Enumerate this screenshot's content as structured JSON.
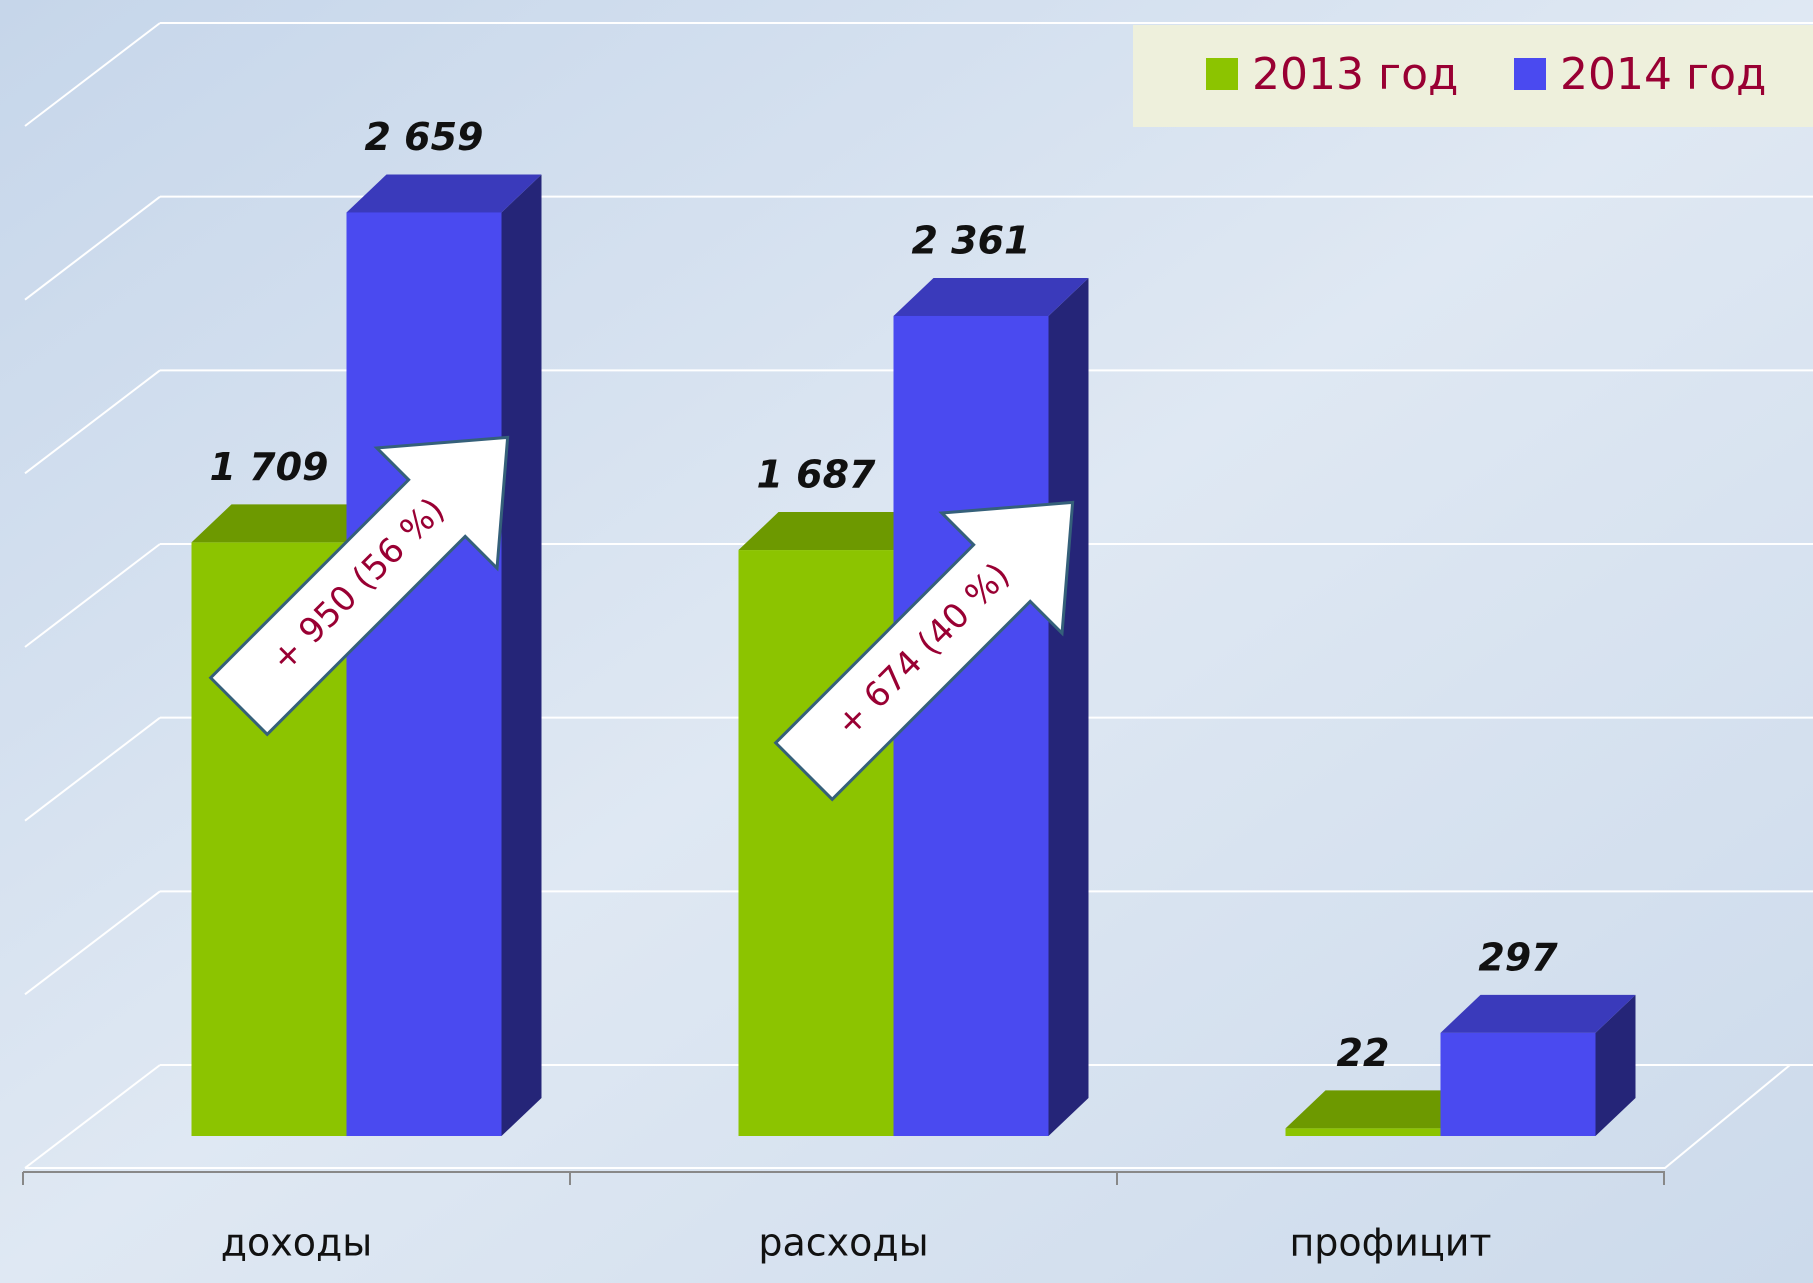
{
  "chart_data": {
    "type": "bar3d",
    "categories": [
      "доходы",
      "расходы",
      "профицит"
    ],
    "series": [
      {
        "name": "2013 год",
        "color": "#8cc400",
        "values": [
          1709,
          1687,
          22
        ],
        "value_labels": [
          "1 709",
          "1 687",
          "22"
        ]
      },
      {
        "name": "2014 год",
        "color": "#4a4af0",
        "values": [
          2659,
          2361,
          297
        ],
        "value_labels": [
          "2 659",
          "2 361",
          "297"
        ]
      }
    ],
    "ylim": [
      0,
      3000
    ],
    "yticks": [
      0,
      500,
      1000,
      1500,
      2000,
      2500,
      3000
    ],
    "grid": true,
    "annotations": [
      "+ 950 (56 %)",
      "+ 674 (40 %)"
    ]
  }
}
